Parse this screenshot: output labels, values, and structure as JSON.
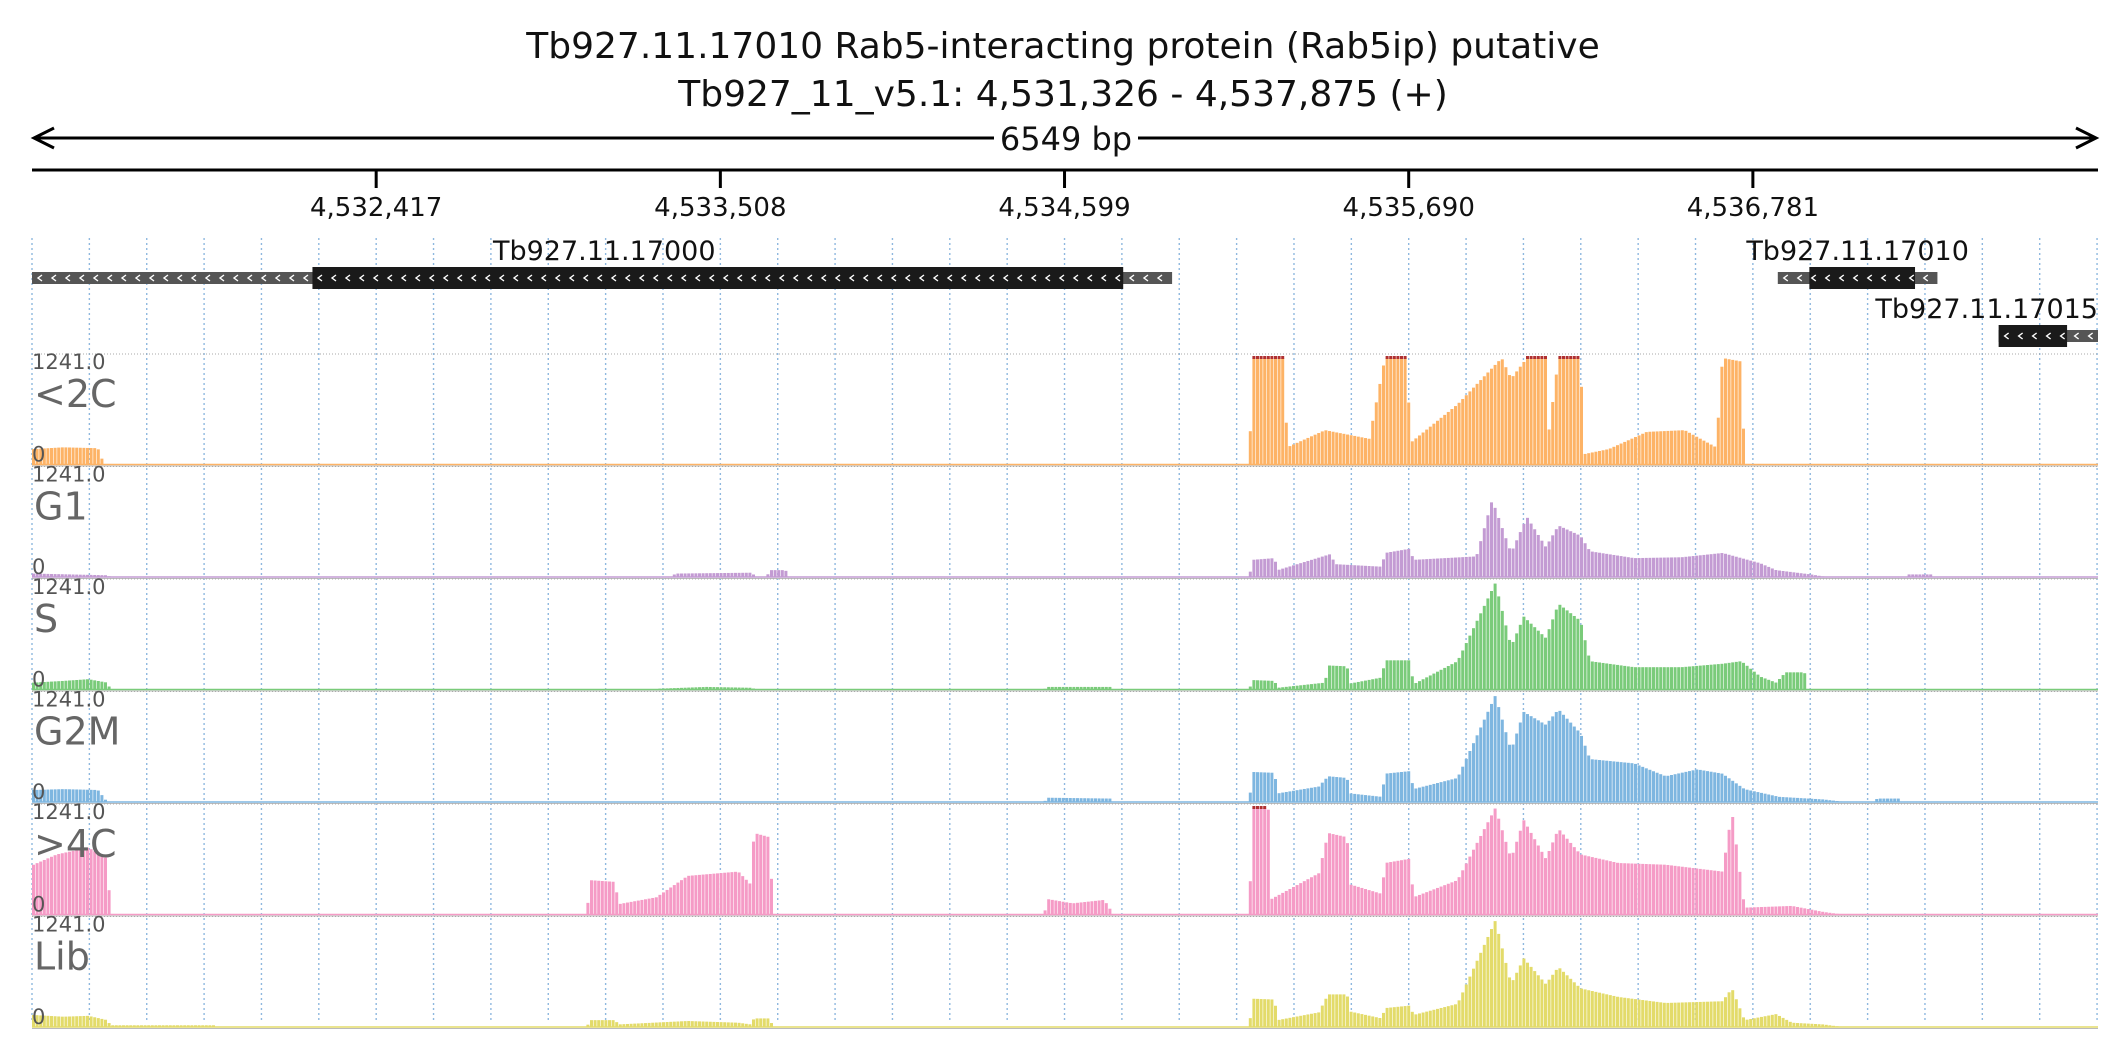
{
  "header": {
    "title": "Tb927.11.17010  Rab5-interacting protein (Rab5ip)  putative",
    "subtitle": "Tb927_11_v5.1: 4,531,326 - 4,537,875 (+)",
    "span_label": "6549 bp"
  },
  "chart_data": {
    "type": "bar",
    "region": {
      "chromosome": "Tb927_11_v5.1",
      "start": 4531326,
      "end": 4537875,
      "strand": "+"
    },
    "axis": {
      "xlim": [
        4531326,
        4537875
      ],
      "ticks": [
        4532417,
        4533508,
        4534599,
        4535690,
        4536781
      ],
      "tick_labels": [
        "4,532,417",
        "4,533,508",
        "4,534,599",
        "4,535,690",
        "4,536,781"
      ],
      "grid": true
    },
    "genes": [
      {
        "name": "Tb927.11.17000",
        "start": 4531326,
        "end": 4534940,
        "cds_start": 4532215,
        "cds_end": 4534785,
        "strand": "-",
        "row": 0
      },
      {
        "name": "Tb927.11.17010",
        "start": 4536860,
        "end": 4537366,
        "cds_start": 4536960,
        "cds_end": 4537295,
        "strand": "-",
        "row": 0
      },
      {
        "name": "Tb927.11.17015",
        "start": 4537560,
        "end": 4537875,
        "cds_start": 4537560,
        "cds_end": 4537777,
        "strand": "-",
        "row": 1
      }
    ],
    "tracks": [
      {
        "name": "<2C",
        "max_label": "1241.0",
        "min_label": "0",
        "color": "#FDB366",
        "max": 1241,
        "points": [
          [
            4531326,
            180
          ],
          [
            4531420,
            200
          ],
          [
            4531530,
            190
          ],
          [
            4531550,
            0
          ],
          [
            4535180,
            0
          ],
          [
            4535190,
            1241
          ],
          [
            4535290,
            1241
          ],
          [
            4535300,
            200
          ],
          [
            4535420,
            400
          ],
          [
            4535560,
            300
          ],
          [
            4535610,
            1241
          ],
          [
            4535680,
            1241
          ],
          [
            4535690,
            250
          ],
          [
            4535840,
            700
          ],
          [
            4535980,
            1241
          ],
          [
            4536010,
            1000
          ],
          [
            4536060,
            1241
          ],
          [
            4536120,
            1241
          ],
          [
            4536130,
            400
          ],
          [
            4536160,
            1241
          ],
          [
            4536230,
            1241
          ],
          [
            4536240,
            120
          ],
          [
            4536320,
            180
          ],
          [
            4536440,
            380
          ],
          [
            4536560,
            400
          ],
          [
            4536660,
            200
          ],
          [
            4536680,
            1241
          ],
          [
            4536740,
            1200
          ],
          [
            4536750,
            0
          ],
          [
            4537875,
            0
          ]
        ]
      },
      {
        "name": "G1",
        "max_label": "1241.0",
        "min_label": "0",
        "color": "#C39BD3",
        "max": 1241,
        "points": [
          [
            4531326,
            40
          ],
          [
            4531560,
            20
          ],
          [
            4531570,
            0
          ],
          [
            4533350,
            0
          ],
          [
            4533360,
            40
          ],
          [
            4533600,
            50
          ],
          [
            4533620,
            0
          ],
          [
            4533650,
            0
          ],
          [
            4533660,
            80
          ],
          [
            4533710,
            80
          ],
          [
            4533720,
            0
          ],
          [
            4535180,
            0
          ],
          [
            4535190,
            200
          ],
          [
            4535260,
            220
          ],
          [
            4535270,
            80
          ],
          [
            4535440,
            270
          ],
          [
            4535450,
            150
          ],
          [
            4535600,
            120
          ],
          [
            4535610,
            280
          ],
          [
            4535690,
            330
          ],
          [
            4535700,
            200
          ],
          [
            4535900,
            240
          ],
          [
            4535950,
            900
          ],
          [
            4536010,
            280
          ],
          [
            4536060,
            700
          ],
          [
            4536120,
            350
          ],
          [
            4536160,
            600
          ],
          [
            4536230,
            480
          ],
          [
            4536260,
            300
          ],
          [
            4536400,
            220
          ],
          [
            4536550,
            230
          ],
          [
            4536680,
            280
          ],
          [
            4536740,
            220
          ],
          [
            4536800,
            160
          ],
          [
            4536850,
            80
          ],
          [
            4536960,
            30
          ],
          [
            4537010,
            0
          ],
          [
            4537260,
            0
          ],
          [
            4537270,
            30
          ],
          [
            4537340,
            30
          ],
          [
            4537350,
            0
          ],
          [
            4537875,
            0
          ]
        ]
      },
      {
        "name": "S",
        "max_label": "1241.0",
        "min_label": "0",
        "color": "#7ACB7A",
        "max": 1241,
        "points": [
          [
            4531326,
            80
          ],
          [
            4531420,
            100
          ],
          [
            4531500,
            120
          ],
          [
            4531560,
            80
          ],
          [
            4531570,
            0
          ],
          [
            4533300,
            0
          ],
          [
            4533310,
            10
          ],
          [
            4533460,
            30
          ],
          [
            4533600,
            20
          ],
          [
            4533620,
            0
          ],
          [
            4534530,
            0
          ],
          [
            4534540,
            30
          ],
          [
            4534740,
            30
          ],
          [
            4534750,
            0
          ],
          [
            4535180,
            0
          ],
          [
            4535190,
            110
          ],
          [
            4535260,
            100
          ],
          [
            4535270,
            20
          ],
          [
            4535420,
            80
          ],
          [
            4535430,
            280
          ],
          [
            4535490,
            270
          ],
          [
            4535500,
            70
          ],
          [
            4535600,
            140
          ],
          [
            4535610,
            340
          ],
          [
            4535690,
            340
          ],
          [
            4535700,
            60
          ],
          [
            4535840,
            330
          ],
          [
            4535960,
            1241
          ],
          [
            4536010,
            500
          ],
          [
            4536050,
            850
          ],
          [
            4536120,
            600
          ],
          [
            4536160,
            1000
          ],
          [
            4536230,
            800
          ],
          [
            4536260,
            330
          ],
          [
            4536400,
            260
          ],
          [
            4536550,
            260
          ],
          [
            4536680,
            300
          ],
          [
            4536740,
            330
          ],
          [
            4536800,
            150
          ],
          [
            4536850,
            80
          ],
          [
            4536880,
            200
          ],
          [
            4536940,
            200
          ],
          [
            4536950,
            0
          ],
          [
            4537875,
            0
          ]
        ]
      },
      {
        "name": "G2M",
        "max_label": "1241.0",
        "min_label": "0",
        "color": "#7EB6E0",
        "max": 1241,
        "points": [
          [
            4531326,
            140
          ],
          [
            4531420,
            150
          ],
          [
            4531530,
            140
          ],
          [
            4531560,
            0
          ],
          [
            4534530,
            0
          ],
          [
            4534540,
            50
          ],
          [
            4534740,
            40
          ],
          [
            4534750,
            0
          ],
          [
            4535180,
            0
          ],
          [
            4535190,
            350
          ],
          [
            4535260,
            340
          ],
          [
            4535270,
            100
          ],
          [
            4535400,
            180
          ],
          [
            4535430,
            300
          ],
          [
            4535490,
            280
          ],
          [
            4535500,
            100
          ],
          [
            4535600,
            60
          ],
          [
            4535610,
            330
          ],
          [
            4535690,
            360
          ],
          [
            4535700,
            150
          ],
          [
            4535840,
            280
          ],
          [
            4535960,
            1241
          ],
          [
            4536010,
            600
          ],
          [
            4536050,
            1050
          ],
          [
            4536120,
            900
          ],
          [
            4536160,
            1080
          ],
          [
            4536230,
            800
          ],
          [
            4536260,
            500
          ],
          [
            4536400,
            450
          ],
          [
            4536500,
            300
          ],
          [
            4536600,
            380
          ],
          [
            4536680,
            330
          ],
          [
            4536750,
            150
          ],
          [
            4536860,
            60
          ],
          [
            4537000,
            30
          ],
          [
            4537070,
            0
          ],
          [
            4537160,
            0
          ],
          [
            4537170,
            40
          ],
          [
            4537240,
            40
          ],
          [
            4537250,
            0
          ],
          [
            4537875,
            0
          ]
        ]
      },
      {
        "name": ">4C",
        "max_label": "1241.0",
        "min_label": "0",
        "color": "#F59BC6",
        "max": 1241,
        "points": [
          [
            4531326,
            580
          ],
          [
            4531400,
            700
          ],
          [
            4531500,
            780
          ],
          [
            4531560,
            650
          ],
          [
            4531570,
            0
          ],
          [
            4533080,
            0
          ],
          [
            4533090,
            400
          ],
          [
            4533170,
            380
          ],
          [
            4533180,
            120
          ],
          [
            4533300,
            200
          ],
          [
            4533400,
            450
          ],
          [
            4533560,
            500
          ],
          [
            4533600,
            350
          ],
          [
            4533610,
            950
          ],
          [
            4533660,
            900
          ],
          [
            4533670,
            0
          ],
          [
            4534530,
            0
          ],
          [
            4534540,
            180
          ],
          [
            4534620,
            130
          ],
          [
            4534720,
            170
          ],
          [
            4534750,
            0
          ],
          [
            4535180,
            0
          ],
          [
            4535190,
            1241
          ],
          [
            4535240,
            1241
          ],
          [
            4535250,
            180
          ],
          [
            4535400,
            480
          ],
          [
            4535430,
            950
          ],
          [
            4535490,
            900
          ],
          [
            4535500,
            350
          ],
          [
            4535600,
            240
          ],
          [
            4535610,
            600
          ],
          [
            4535690,
            650
          ],
          [
            4535700,
            200
          ],
          [
            4535840,
            400
          ],
          [
            4535960,
            1241
          ],
          [
            4536010,
            650
          ],
          [
            4536050,
            1100
          ],
          [
            4536120,
            650
          ],
          [
            4536160,
            1000
          ],
          [
            4536230,
            700
          ],
          [
            4536350,
            600
          ],
          [
            4536500,
            580
          ],
          [
            4536680,
            500
          ],
          [
            4536710,
            1200
          ],
          [
            4536750,
            80
          ],
          [
            4536900,
            100
          ],
          [
            4537000,
            30
          ],
          [
            4537060,
            0
          ],
          [
            4537875,
            0
          ]
        ]
      },
      {
        "name": "Lib",
        "max_label": "1241.0",
        "min_label": "0",
        "color": "#E3DB6A",
        "max": 1241,
        "points": [
          [
            4531326,
            140
          ],
          [
            4531420,
            120
          ],
          [
            4531500,
            130
          ],
          [
            4531560,
            80
          ],
          [
            4531570,
            20
          ],
          [
            4531900,
            20
          ],
          [
            4531910,
            0
          ],
          [
            4533080,
            0
          ],
          [
            4533090,
            80
          ],
          [
            4533170,
            80
          ],
          [
            4533180,
            30
          ],
          [
            4533400,
            70
          ],
          [
            4533560,
            50
          ],
          [
            4533600,
            30
          ],
          [
            4533610,
            100
          ],
          [
            4533660,
            100
          ],
          [
            4533670,
            0
          ],
          [
            4535180,
            0
          ],
          [
            4535190,
            330
          ],
          [
            4535260,
            320
          ],
          [
            4535270,
            80
          ],
          [
            4535400,
            170
          ],
          [
            4535430,
            380
          ],
          [
            4535490,
            380
          ],
          [
            4535500,
            180
          ],
          [
            4535600,
            100
          ],
          [
            4535610,
            220
          ],
          [
            4535690,
            250
          ],
          [
            4535700,
            140
          ],
          [
            4535840,
            270
          ],
          [
            4535960,
            1241
          ],
          [
            4536010,
            500
          ],
          [
            4536050,
            800
          ],
          [
            4536120,
            500
          ],
          [
            4536160,
            700
          ],
          [
            4536230,
            450
          ],
          [
            4536350,
            350
          ],
          [
            4536500,
            280
          ],
          [
            4536680,
            300
          ],
          [
            4536710,
            450
          ],
          [
            4536750,
            80
          ],
          [
            4536850,
            150
          ],
          [
            4536900,
            50
          ],
          [
            4537000,
            30
          ],
          [
            4537060,
            0
          ],
          [
            4537875,
            0
          ]
        ]
      }
    ]
  }
}
